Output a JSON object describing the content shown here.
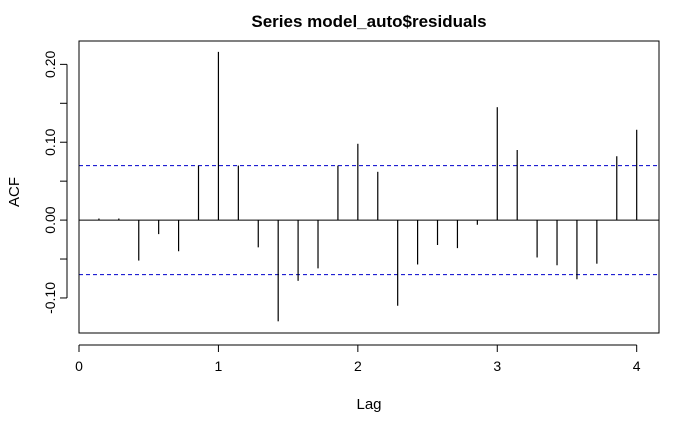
{
  "chart_data": {
    "type": "bar",
    "title": "Series model_auto$residuals",
    "xlabel": "Lag",
    "ylabel": "ACF",
    "xlim": [
      0,
      4.16
    ],
    "ylim": [
      -0.145,
      0.23
    ],
    "x_ticks": [
      0,
      1,
      2,
      3,
      4
    ],
    "x_tick_labels": [
      "0",
      "1",
      "2",
      "3",
      "4"
    ],
    "y_ticks": [
      -0.1,
      0.0,
      0.1,
      0.2
    ],
    "y_tick_labels": [
      "-0.10",
      "0.00",
      "0.10",
      "0.20"
    ],
    "grid": false,
    "zero_line": 0,
    "confidence_bound": 0.07,
    "confidence_color": "#0000cc",
    "bar_color": "#000000",
    "lags": [
      0.1429,
      0.2857,
      0.4286,
      0.5714,
      0.7143,
      0.8571,
      1.0,
      1.1429,
      1.2857,
      1.4286,
      1.5714,
      1.7143,
      1.8571,
      2.0,
      2.1429,
      2.2857,
      2.4286,
      2.5714,
      2.7143,
      2.8571,
      3.0,
      3.1429,
      3.2857,
      3.4286,
      3.5714,
      3.7143,
      3.8571,
      4.0
    ],
    "acf": [
      0.002,
      0.002,
      -0.052,
      -0.018,
      -0.04,
      0.07,
      0.216,
      0.07,
      -0.035,
      -0.13,
      -0.078,
      -0.062,
      0.07,
      0.098,
      0.062,
      -0.11,
      -0.057,
      -0.032,
      -0.036,
      -0.006,
      0.145,
      0.09,
      -0.048,
      -0.058,
      -0.076,
      -0.056,
      0.082,
      0.116
    ]
  }
}
